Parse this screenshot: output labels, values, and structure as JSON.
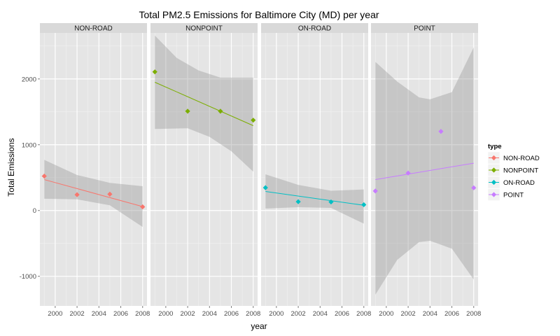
{
  "chart_data": {
    "type": "scatter",
    "title": "Total PM2.5 Emissions for Baltimore City (MD) per year",
    "xlabel": "year",
    "ylabel": "Total Emissions",
    "xlim": [
      1998.6,
      2008.4
    ],
    "ylim": [
      -1450,
      2700
    ],
    "x_ticks": [
      2000,
      2002,
      2004,
      2006,
      2008
    ],
    "y_ticks": [
      -1000,
      0,
      1000,
      2000
    ],
    "grid": true,
    "facet_by": "type",
    "legend": {
      "title": "type",
      "placement": "right"
    },
    "series": [
      {
        "name": "NON-ROAD",
        "color": "#F8766D",
        "points": [
          [
            1999,
            522.94
          ],
          [
            2002,
            240.85
          ],
          [
            2005,
            248.93
          ],
          [
            2008,
            55.82
          ]
        ],
        "fit": [
          [
            1999,
            470
          ],
          [
            2008,
            60
          ]
        ],
        "band": {
          "upper": [
            [
              1999,
              770
            ],
            [
              2002,
              540
            ],
            [
              2005,
              420
            ],
            [
              2008,
              370
            ]
          ],
          "lower": [
            [
              1999,
              180
            ],
            [
              2002,
              170
            ],
            [
              2005,
              80
            ],
            [
              2008,
              -250
            ]
          ]
        }
      },
      {
        "name": "NONPOINT",
        "color": "#7CAE00",
        "points": [
          [
            1999,
            2107.63
          ],
          [
            2002,
            1509.5
          ],
          [
            2005,
            1509.5
          ],
          [
            2008,
            1373.21
          ]
        ],
        "fit": [
          [
            1999,
            1950
          ],
          [
            2008,
            1290
          ]
        ],
        "band": {
          "upper": [
            [
              1999,
              2660
            ],
            [
              2001,
              2320
            ],
            [
              2003,
              2130
            ],
            [
              2005,
              2020
            ],
            [
              2008,
              2020
            ]
          ],
          "lower": [
            [
              1999,
              1240
            ],
            [
              2002,
              1250
            ],
            [
              2004,
              1120
            ],
            [
              2006,
              900
            ],
            [
              2008,
              590
            ]
          ]
        }
      },
      {
        "name": "ON-ROAD",
        "color": "#00BFC4",
        "points": [
          [
            1999,
            346.82
          ],
          [
            2002,
            134.31
          ],
          [
            2005,
            130.43
          ],
          [
            2008,
            88.28
          ]
        ],
        "fit": [
          [
            1999,
            290
          ],
          [
            2008,
            80
          ]
        ],
        "band": {
          "upper": [
            [
              1999,
              550
            ],
            [
              2002,
              390
            ],
            [
              2005,
              300
            ],
            [
              2008,
              320
            ]
          ],
          "lower": [
            [
              1999,
              30
            ],
            [
              2002,
              50
            ],
            [
              2005,
              40
            ],
            [
              2008,
              -200
            ]
          ]
        }
      },
      {
        "name": "POINT",
        "color": "#C77CFF",
        "points": [
          [
            1999,
            296.8
          ],
          [
            2002,
            569.26
          ],
          [
            2005,
            1202.49
          ],
          [
            2008,
            344.98
          ]
        ],
        "fit": [
          [
            1999,
            470
          ],
          [
            2008,
            720
          ]
        ],
        "band": {
          "upper": [
            [
              1999,
              2260
            ],
            [
              2001,
              1960
            ],
            [
              2003,
              1720
            ],
            [
              2004,
              1690
            ],
            [
              2006,
              1800
            ],
            [
              2008,
              2480
            ]
          ],
          "lower": [
            [
              1999,
              -1280
            ],
            [
              2001,
              -750
            ],
            [
              2003,
              -480
            ],
            [
              2004,
              -460
            ],
            [
              2006,
              -580
            ],
            [
              2008,
              -1050
            ]
          ]
        }
      }
    ]
  }
}
